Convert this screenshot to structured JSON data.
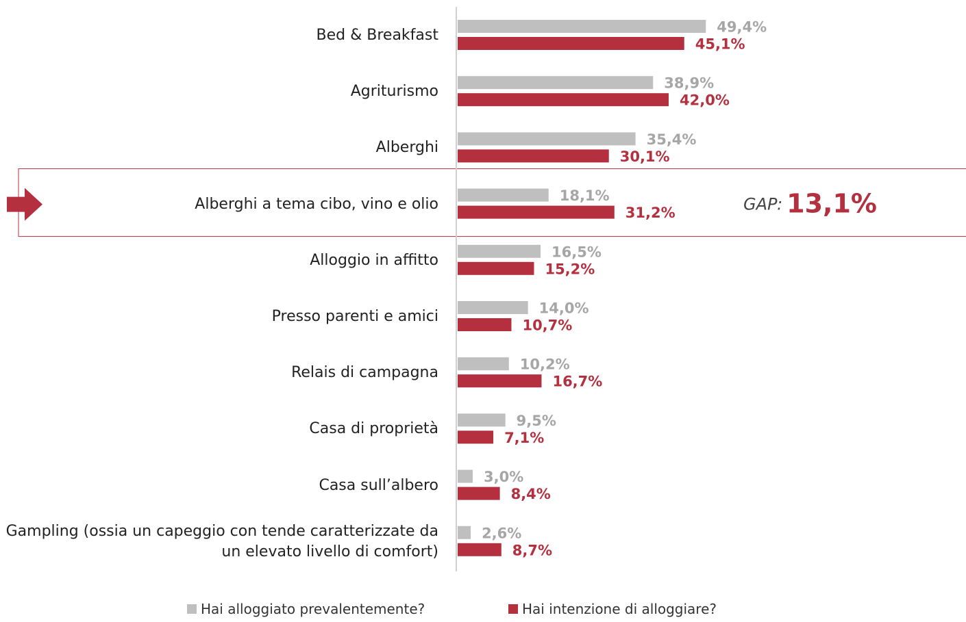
{
  "chart_data": {
    "type": "bar",
    "orientation": "horizontal",
    "categories": [
      "Bed & Breakfast",
      "Agriturismo",
      "Alberghi",
      "Alberghi a tema cibo, vino e olio",
      "Alloggio in affitto",
      "Presso parenti e amici",
      "Relais di campagna",
      "Casa di proprietà",
      "Casa sull’albero",
      "Gampling (ossia un capeggio con tende caratterizzate da un elevato livello di comfort)"
    ],
    "series": [
      {
        "name": "Hai alloggiato prevalentemente?",
        "color": "#bfbfbf",
        "label_color": "#a6a6a6",
        "values": [
          49.4,
          38.9,
          35.4,
          18.1,
          16.5,
          14.0,
          10.2,
          9.5,
          3.0,
          2.6
        ],
        "value_labels": [
          "49,4%",
          "38,9%",
          "35,4%",
          "18,1%",
          "16,5%",
          "14,0%",
          "10,2%",
          "9,5%",
          "3,0%",
          "2,6%"
        ]
      },
      {
        "name": "Hai intenzione di alloggiare?",
        "color": "#b5303f",
        "label_color": "#b5303f",
        "values": [
          45.1,
          42.0,
          30.1,
          31.2,
          15.2,
          10.7,
          16.7,
          7.1,
          8.4,
          8.7
        ],
        "value_labels": [
          "45,1%",
          "42,0%",
          "30,1%",
          "31,2%",
          "15,2%",
          "10,7%",
          "16,7%",
          "7,1%",
          "8,4%",
          "8,7%"
        ]
      }
    ],
    "xlim": [
      0,
      60
    ],
    "annotation": {
      "label": "GAP:",
      "value_label": "13,1%"
    }
  }
}
